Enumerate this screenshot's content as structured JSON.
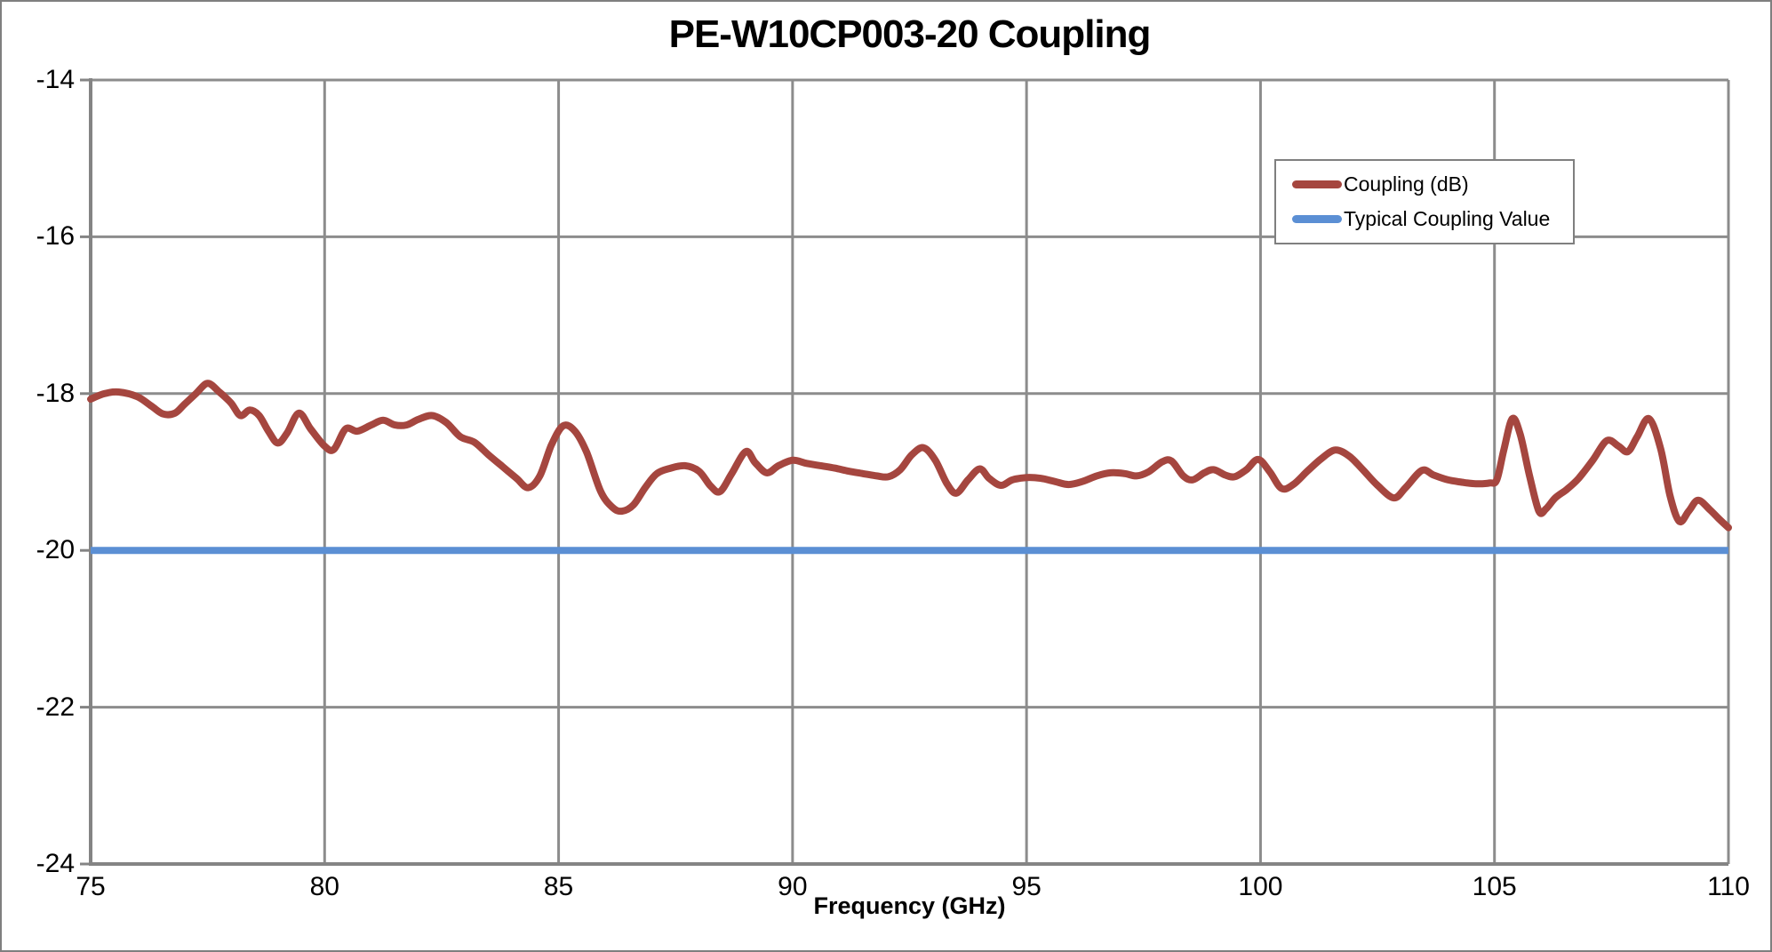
{
  "chart_data": {
    "type": "line",
    "title": "PE-W10CP003-20 Coupling",
    "xlabel": "Frequency (GHz)",
    "ylabel": "",
    "x_range": [
      75,
      110
    ],
    "y_range": [
      -24,
      -14
    ],
    "xticks": [
      75,
      80,
      85,
      90,
      95,
      100,
      105,
      110
    ],
    "yticks": [
      -14,
      -16,
      -18,
      -20,
      -22,
      -24
    ],
    "grid": true,
    "legend_position": "top-right-inside",
    "series": [
      {
        "name": "Coupling (dB)",
        "color": "#A5463F",
        "points": [
          [
            75.0,
            -18.07
          ],
          [
            75.3,
            -18.0
          ],
          [
            75.6,
            -17.98
          ],
          [
            76.0,
            -18.04
          ],
          [
            76.3,
            -18.16
          ],
          [
            76.55,
            -18.26
          ],
          [
            76.8,
            -18.25
          ],
          [
            77.0,
            -18.14
          ],
          [
            77.25,
            -18.0
          ],
          [
            77.5,
            -17.87
          ],
          [
            77.75,
            -17.98
          ],
          [
            78.0,
            -18.12
          ],
          [
            78.2,
            -18.28
          ],
          [
            78.4,
            -18.21
          ],
          [
            78.6,
            -18.28
          ],
          [
            78.8,
            -18.48
          ],
          [
            79.0,
            -18.63
          ],
          [
            79.2,
            -18.5
          ],
          [
            79.45,
            -18.25
          ],
          [
            79.7,
            -18.45
          ],
          [
            80.0,
            -18.67
          ],
          [
            80.2,
            -18.71
          ],
          [
            80.45,
            -18.45
          ],
          [
            80.7,
            -18.48
          ],
          [
            81.0,
            -18.4
          ],
          [
            81.25,
            -18.34
          ],
          [
            81.5,
            -18.4
          ],
          [
            81.75,
            -18.4
          ],
          [
            82.0,
            -18.33
          ],
          [
            82.3,
            -18.28
          ],
          [
            82.6,
            -18.37
          ],
          [
            82.9,
            -18.55
          ],
          [
            83.2,
            -18.62
          ],
          [
            83.5,
            -18.78
          ],
          [
            83.8,
            -18.93
          ],
          [
            84.1,
            -19.08
          ],
          [
            84.35,
            -19.2
          ],
          [
            84.6,
            -19.05
          ],
          [
            84.85,
            -18.65
          ],
          [
            85.1,
            -18.41
          ],
          [
            85.35,
            -18.48
          ],
          [
            85.6,
            -18.75
          ],
          [
            85.9,
            -19.25
          ],
          [
            86.15,
            -19.45
          ],
          [
            86.35,
            -19.5
          ],
          [
            86.6,
            -19.42
          ],
          [
            86.85,
            -19.2
          ],
          [
            87.1,
            -19.02
          ],
          [
            87.4,
            -18.95
          ],
          [
            87.7,
            -18.92
          ],
          [
            88.0,
            -18.99
          ],
          [
            88.25,
            -19.18
          ],
          [
            88.45,
            -19.25
          ],
          [
            88.7,
            -19.02
          ],
          [
            89.0,
            -18.74
          ],
          [
            89.2,
            -18.88
          ],
          [
            89.45,
            -19.01
          ],
          [
            89.7,
            -18.92
          ],
          [
            90.0,
            -18.85
          ],
          [
            90.3,
            -18.89
          ],
          [
            90.6,
            -18.92
          ],
          [
            90.9,
            -18.95
          ],
          [
            91.2,
            -18.99
          ],
          [
            91.5,
            -19.02
          ],
          [
            91.8,
            -19.05
          ],
          [
            92.05,
            -19.06
          ],
          [
            92.3,
            -18.97
          ],
          [
            92.55,
            -18.78
          ],
          [
            92.8,
            -18.69
          ],
          [
            93.05,
            -18.85
          ],
          [
            93.3,
            -19.15
          ],
          [
            93.5,
            -19.27
          ],
          [
            93.75,
            -19.1
          ],
          [
            94.0,
            -18.96
          ],
          [
            94.2,
            -19.08
          ],
          [
            94.45,
            -19.17
          ],
          [
            94.7,
            -19.1
          ],
          [
            95.0,
            -19.07
          ],
          [
            95.3,
            -19.08
          ],
          [
            95.6,
            -19.12
          ],
          [
            95.9,
            -19.16
          ],
          [
            96.2,
            -19.12
          ],
          [
            96.5,
            -19.05
          ],
          [
            96.8,
            -19.01
          ],
          [
            97.1,
            -19.02
          ],
          [
            97.35,
            -19.05
          ],
          [
            97.6,
            -19.0
          ],
          [
            97.9,
            -18.87
          ],
          [
            98.1,
            -18.86
          ],
          [
            98.35,
            -19.05
          ],
          [
            98.55,
            -19.1
          ],
          [
            98.8,
            -19.01
          ],
          [
            99.0,
            -18.97
          ],
          [
            99.25,
            -19.04
          ],
          [
            99.45,
            -19.06
          ],
          [
            99.7,
            -18.97
          ],
          [
            99.95,
            -18.84
          ],
          [
            100.2,
            -19.0
          ],
          [
            100.45,
            -19.21
          ],
          [
            100.7,
            -19.16
          ],
          [
            101.0,
            -18.99
          ],
          [
            101.3,
            -18.83
          ],
          [
            101.6,
            -18.72
          ],
          [
            101.9,
            -18.8
          ],
          [
            102.2,
            -18.98
          ],
          [
            102.5,
            -19.17
          ],
          [
            102.85,
            -19.33
          ],
          [
            103.1,
            -19.2
          ],
          [
            103.45,
            -18.98
          ],
          [
            103.7,
            -19.04
          ],
          [
            104.0,
            -19.1
          ],
          [
            104.3,
            -19.13
          ],
          [
            104.6,
            -19.15
          ],
          [
            104.9,
            -19.14
          ],
          [
            105.05,
            -19.1
          ],
          [
            105.2,
            -18.72
          ],
          [
            105.38,
            -18.32
          ],
          [
            105.55,
            -18.52
          ],
          [
            105.75,
            -19.05
          ],
          [
            105.95,
            -19.5
          ],
          [
            106.1,
            -19.47
          ],
          [
            106.3,
            -19.33
          ],
          [
            106.55,
            -19.22
          ],
          [
            106.8,
            -19.08
          ],
          [
            107.1,
            -18.85
          ],
          [
            107.4,
            -18.6
          ],
          [
            107.65,
            -18.67
          ],
          [
            107.85,
            -18.74
          ],
          [
            108.05,
            -18.55
          ],
          [
            108.3,
            -18.32
          ],
          [
            108.55,
            -18.7
          ],
          [
            108.75,
            -19.3
          ],
          [
            108.95,
            -19.63
          ],
          [
            109.15,
            -19.5
          ],
          [
            109.35,
            -19.36
          ],
          [
            109.6,
            -19.48
          ],
          [
            109.8,
            -19.6
          ],
          [
            110.0,
            -19.71
          ]
        ]
      },
      {
        "name": "Typical Coupling Value",
        "color": "#5B8FD4",
        "constant": -20
      }
    ],
    "colors": {
      "gridline": "#8C8C8C",
      "axis": "#848484",
      "border": "#7F7F7F",
      "text": "#000000",
      "background": "#FFFFFF"
    }
  }
}
